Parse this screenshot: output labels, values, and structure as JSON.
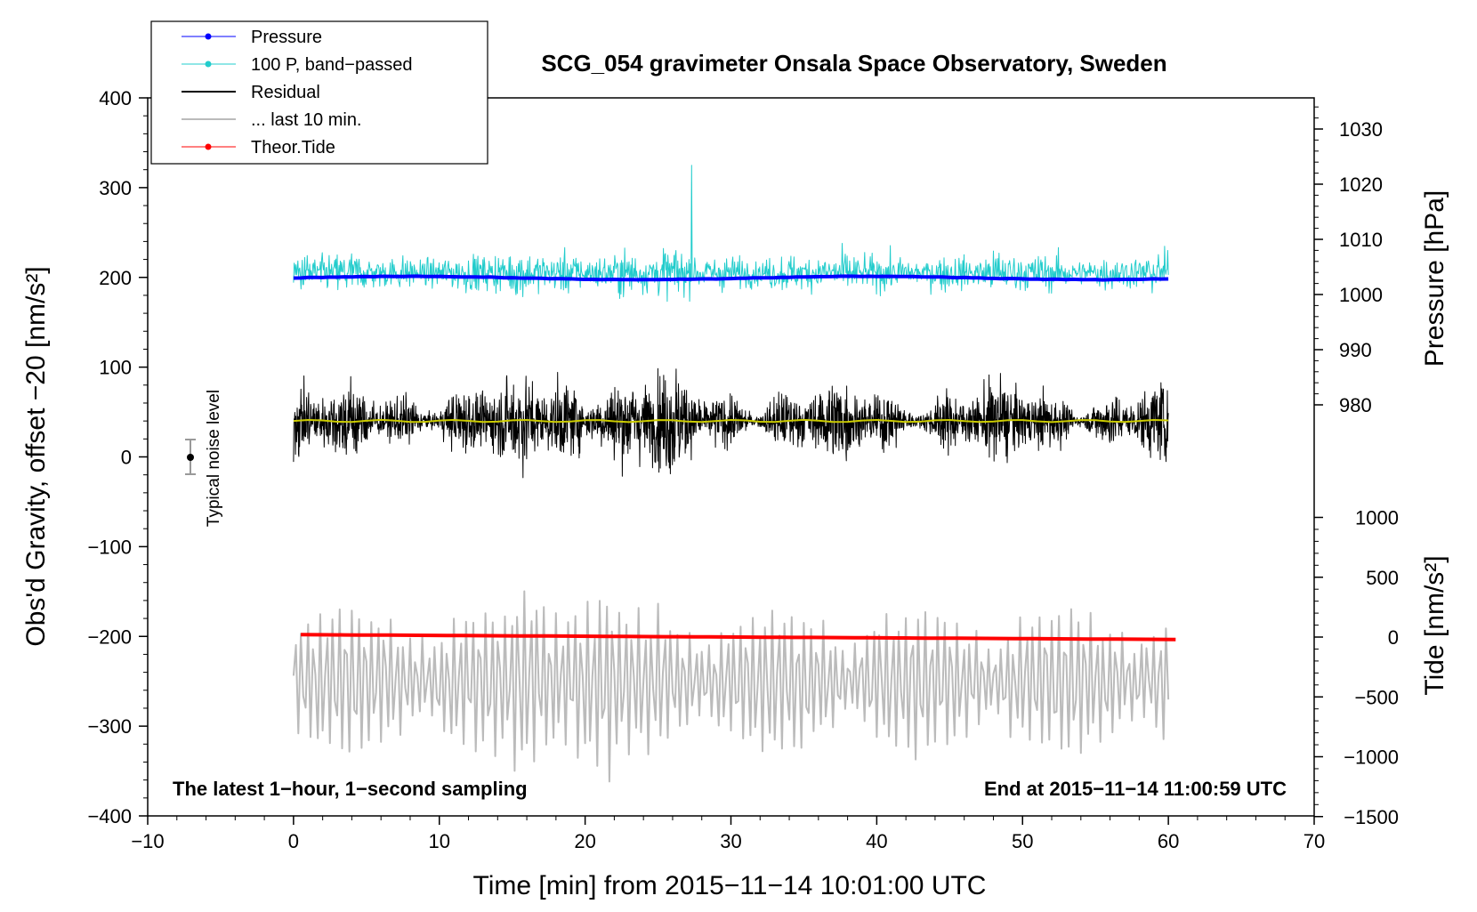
{
  "chart_data": {
    "type": "line",
    "title": "SCG_054 gravimeter Onsala Space Observatory, Sweden",
    "xlabel": "Time [min] from 2015−11−14 10:01:00 UTC",
    "ylabel_left": "Obs'd Gravity, offset −20 [nm/s²]",
    "ylabel_right_top": "Pressure [hPa]",
    "ylabel_right_bottom": "Tide [nm/s²]",
    "xlim": [
      -10,
      70
    ],
    "ylim_left": [
      -400,
      400
    ],
    "x_ticks": [
      "−10",
      "0",
      "10",
      "20",
      "30",
      "40",
      "50",
      "60",
      "70"
    ],
    "y_left_ticks": [
      "400",
      "300",
      "200",
      "100",
      "0",
      "−100",
      "−200",
      "−300",
      "−400"
    ],
    "pressure_ticks": [
      "1030",
      "1020",
      "1010",
      "1000",
      "990",
      "980"
    ],
    "tide_ticks": [
      "1000",
      "500",
      "0",
      "−500",
      "−1000",
      "−1500"
    ],
    "annotation_left": "The latest 1−hour, 1−second sampling",
    "annotation_right": "End at 2015−11−14 11:00:59 UTC",
    "noise_label": "Typical noise level",
    "noise_bar": {
      "x": -7,
      "center": 0,
      "half_range": 20
    },
    "legend": [
      {
        "name": "Pressure",
        "color": "#0000ff",
        "style": "line-dot"
      },
      {
        "name": "100 P, band−passed",
        "color": "#22cccc",
        "style": "line-dot"
      },
      {
        "name": "Residual",
        "color": "#000000",
        "style": "line"
      },
      {
        "name": "... last 10 min.",
        "color": "#bbbbbb",
        "style": "line"
      },
      {
        "name": "Theor.Tide",
        "color": "#ff0000",
        "style": "line-dot"
      }
    ],
    "series": [
      {
        "name": "Pressure",
        "approx_level_hPa": 1003,
        "x_range": [
          0,
          60
        ]
      },
      {
        "name": "100 P, band−passed",
        "approx_center": 205,
        "approx_amplitude": 25,
        "x_range": [
          0,
          60
        ]
      },
      {
        "name": "Residual",
        "approx_center": 40,
        "approx_amplitude": 60,
        "x_range": [
          0,
          60
        ]
      },
      {
        "name": "Residual mean",
        "approx_level": 40,
        "x_range": [
          0,
          60
        ]
      },
      {
        "name": "... last 10 min.",
        "approx_center": -250,
        "approx_amplitude": 80,
        "x_range": [
          0,
          60
        ]
      },
      {
        "name": "Theor.Tide",
        "start_nm_s2": 20,
        "end_nm_s2": -20,
        "x_range": [
          0.5,
          60.5
        ]
      }
    ]
  },
  "colors": {
    "pressure": "#0000ff",
    "bandpassed": "#22cccc",
    "residual": "#000000",
    "residual_mean": "#cccc00",
    "last10": "#bbbbbb",
    "tide": "#ff0000"
  }
}
